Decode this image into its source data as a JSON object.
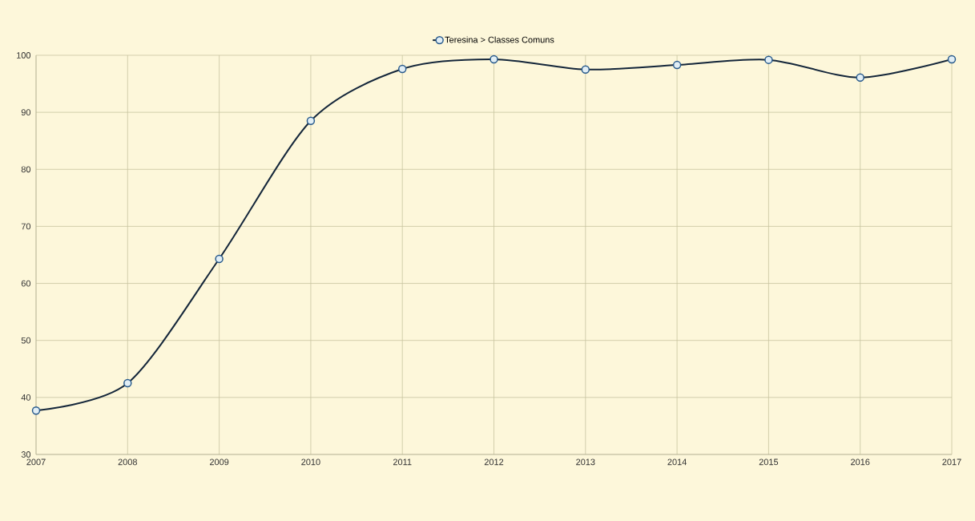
{
  "chart_data": {
    "type": "line",
    "categories": [
      "2007",
      "2008",
      "2009",
      "2010",
      "2011",
      "2012",
      "2013",
      "2014",
      "2015",
      "2016",
      "2017"
    ],
    "series": [
      {
        "name": "Teresina > Classes Comuns",
        "color": "#14263a",
        "values": [
          37.7,
          42.5,
          64.3,
          88.5,
          97.6,
          99.3,
          97.5,
          98.3,
          99.2,
          96.1,
          99.3
        ]
      }
    ],
    "ylim": [
      30,
      100
    ],
    "yticks": [
      30,
      40,
      50,
      60,
      70,
      80,
      90,
      100
    ],
    "grid": true,
    "legend": "top",
    "marker": "circle",
    "line_style": "solid"
  }
}
